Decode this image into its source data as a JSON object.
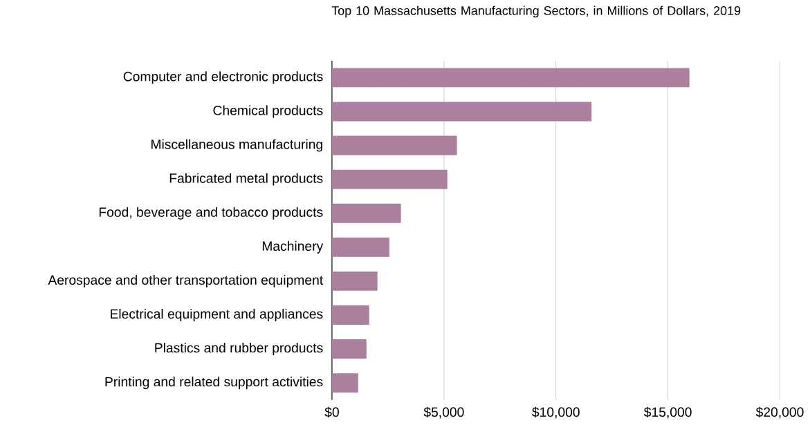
{
  "chart_data": {
    "type": "bar",
    "orientation": "horizontal",
    "title": "Top 10 Massachusetts Manufacturing Sectors, in Millions of Dollars, 2019",
    "categories": [
      "Computer and electronic products",
      "Chemical products",
      "Miscellaneous manufacturing",
      "Fabricated metal products",
      "Food, beverage and tobacco products",
      "Machinery",
      "Aerospace and other transportation equipment",
      "Electrical equipment and appliances",
      "Plastics and rubber products",
      "Printing and related support activities"
    ],
    "values": [
      15960,
      11590,
      5580,
      5150,
      3080,
      2560,
      2030,
      1660,
      1540,
      1170
    ],
    "color": "#ad7f9f",
    "xlim": [
      0,
      20000
    ],
    "xticks": [
      {
        "value": 0,
        "label": "$0"
      },
      {
        "value": 5000,
        "label": "$5,000"
      },
      {
        "value": 10000,
        "label": "$10,000"
      },
      {
        "value": 15000,
        "label": "$15,000"
      },
      {
        "value": 20000,
        "label": "$20,000"
      }
    ],
    "grid": "x"
  }
}
